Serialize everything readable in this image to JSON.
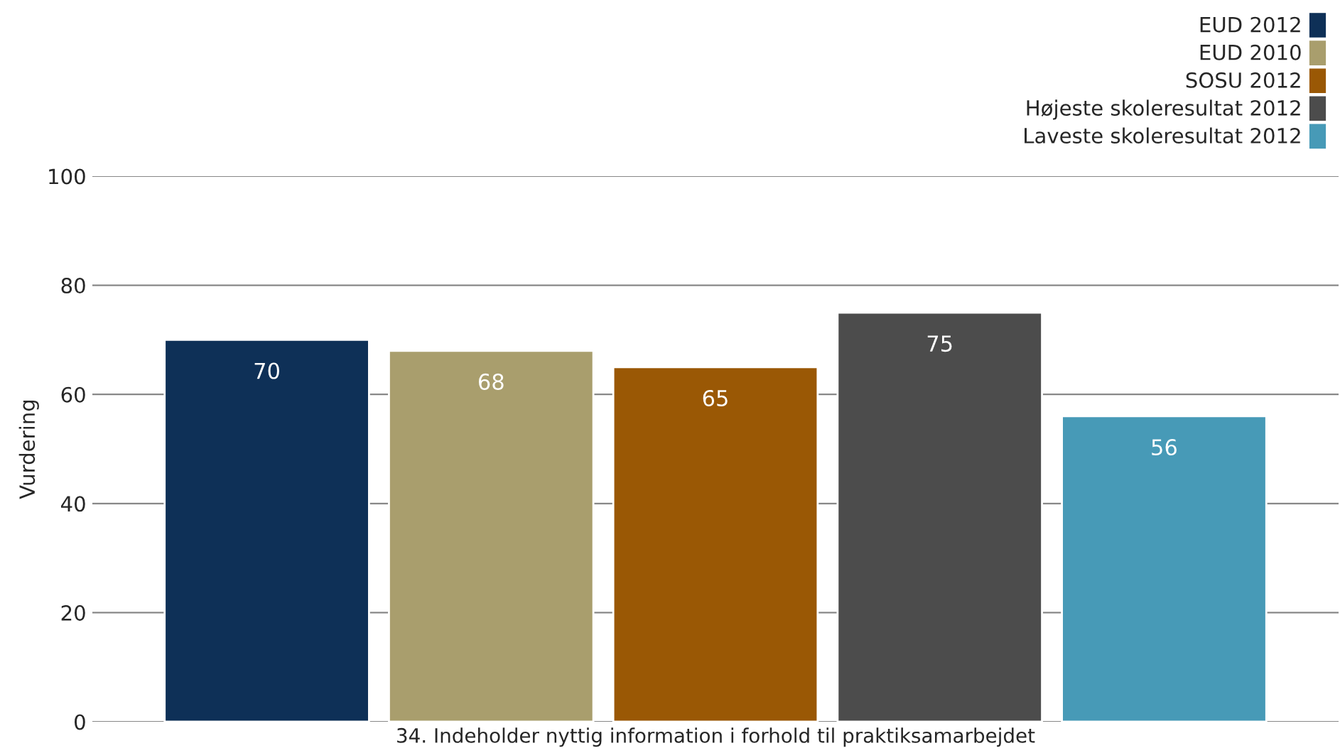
{
  "chart_data": {
    "type": "bar",
    "ylabel": "Vurdering",
    "categories": [
      "34. Indeholder nyttig information i forhold til praktiksamarbejdet"
    ],
    "series": [
      {
        "name": "EUD 2012",
        "color": "#0e3057",
        "values": [
          70
        ]
      },
      {
        "name": "EUD 2010",
        "color": "#a99e6d",
        "values": [
          68
        ]
      },
      {
        "name": "SOSU 2012",
        "color": "#9a5805",
        "values": [
          65
        ]
      },
      {
        "name": "Højeste skoleresultat 2012",
        "color": "#4c4c4c",
        "values": [
          75
        ]
      },
      {
        "name": "Laveste skoleresultat 2012",
        "color": "#479ab7",
        "values": [
          56
        ]
      }
    ],
    "ylim": [
      0,
      100
    ],
    "yticks": [
      0,
      20,
      40,
      60,
      80,
      100
    ],
    "grid": "y",
    "legend": "top right",
    "data_labels": true
  }
}
